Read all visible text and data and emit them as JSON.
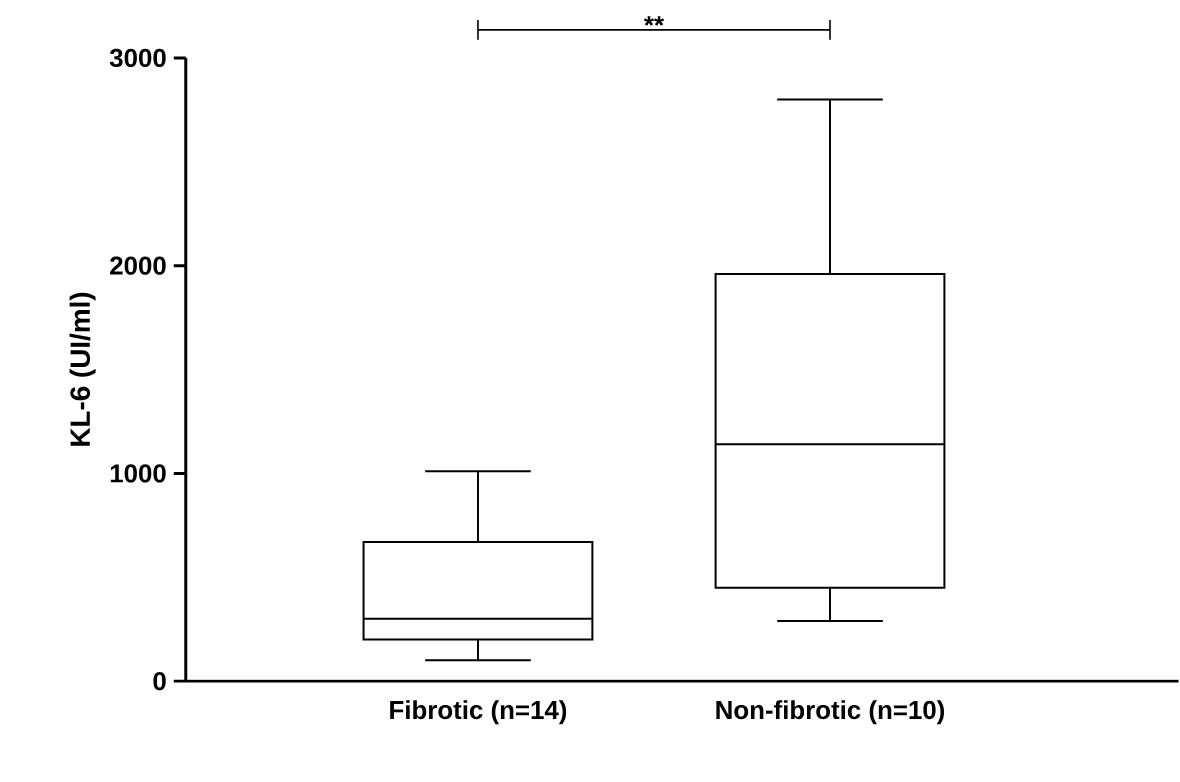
{
  "chart_data": {
    "type": "box",
    "ylabel": "KL-6 (UI/ml)",
    "categories": [
      "Fibrotic (n=14)",
      "Non-fibrotic (n=10)"
    ],
    "boxes": [
      {
        "low": 100,
        "q1": 200,
        "median": 300,
        "q3": 670,
        "high": 1010
      },
      {
        "low": 290,
        "q1": 450,
        "median": 1140,
        "q3": 1960,
        "high": 2800
      }
    ],
    "ylim": [
      0,
      3000
    ],
    "yticks": [
      0,
      1000,
      2000,
      3000
    ],
    "grid": false,
    "annotations": [
      "**"
    ]
  }
}
